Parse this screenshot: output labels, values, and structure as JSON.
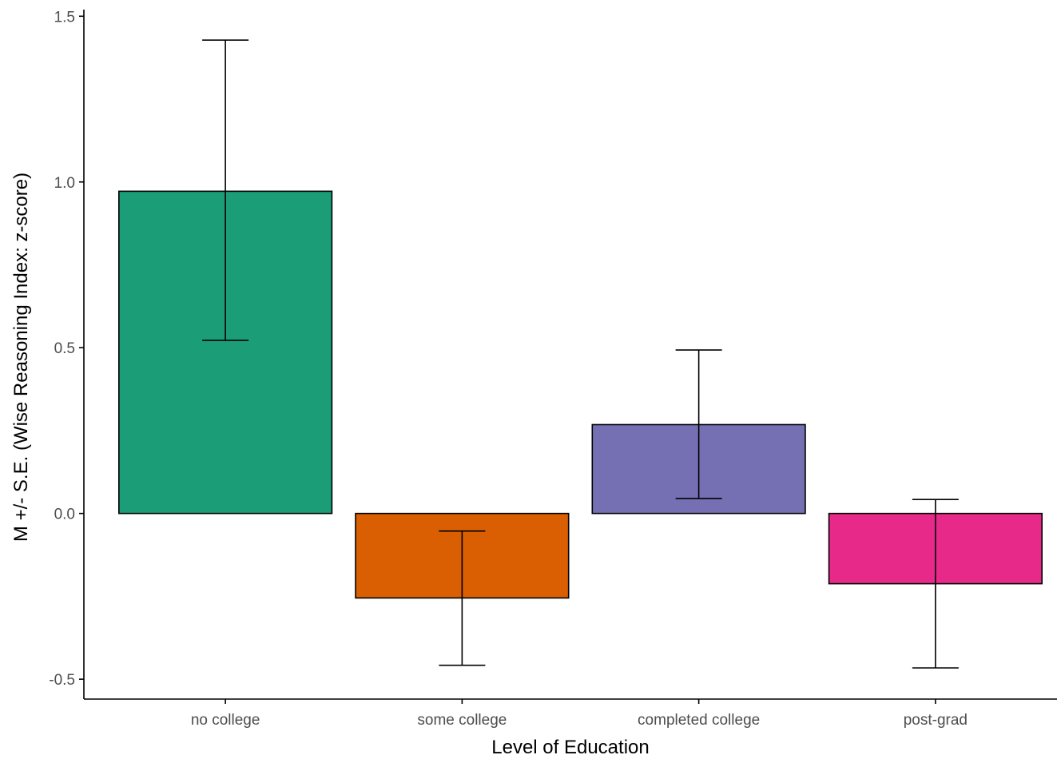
{
  "chart_data": {
    "type": "bar",
    "categories": [
      "no college",
      "some college",
      "completed college",
      "post-grad"
    ],
    "values": [
      0.972,
      -0.255,
      0.268,
      -0.212
    ],
    "errors": [
      {
        "lower": 0.522,
        "upper": 1.428
      },
      {
        "lower": -0.458,
        "upper": -0.053
      },
      {
        "lower": 0.045,
        "upper": 0.493
      },
      {
        "lower": -0.466,
        "upper": 0.042
      }
    ],
    "colors": [
      "#1b9e77",
      "#d95f02",
      "#7570b3",
      "#e7298a"
    ],
    "xlabel": "Level of Education",
    "ylabel": "M +/- S.E. (Wise Reasoning Index: z-score)",
    "ylim": [
      -0.56,
      1.52
    ],
    "yticks": [
      -0.5,
      0.0,
      0.5,
      1.0,
      1.5
    ],
    "ytick_labels": [
      "-0.5",
      "0.0",
      "0.5",
      "1.0",
      "1.5"
    ],
    "grid": false,
    "legend": "none"
  }
}
